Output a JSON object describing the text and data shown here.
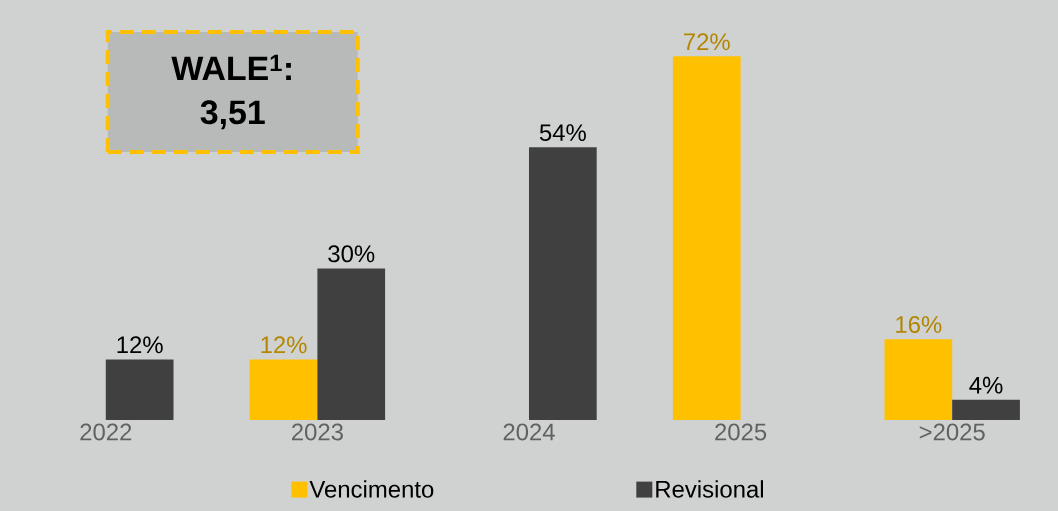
{
  "chart_data": {
    "type": "bar",
    "categories": [
      "2022",
      "2023",
      "2024",
      "2025",
      ">2025"
    ],
    "series": [
      {
        "name": "Vencimento",
        "color": "#ffc000",
        "values": [
          null,
          12,
          null,
          72,
          16
        ],
        "value_labels": [
          null,
          "12%",
          null,
          "72%",
          "16%"
        ]
      },
      {
        "name": "Revisional",
        "color": "#404040",
        "values": [
          12,
          30,
          54,
          null,
          4
        ],
        "value_labels": [
          "12%",
          "30%",
          "54%",
          null,
          "4%"
        ]
      }
    ],
    "annotations": [
      "WALE$^{1}$:",
      "3,51"
    ],
    "legend": "bottom"
  }
}
